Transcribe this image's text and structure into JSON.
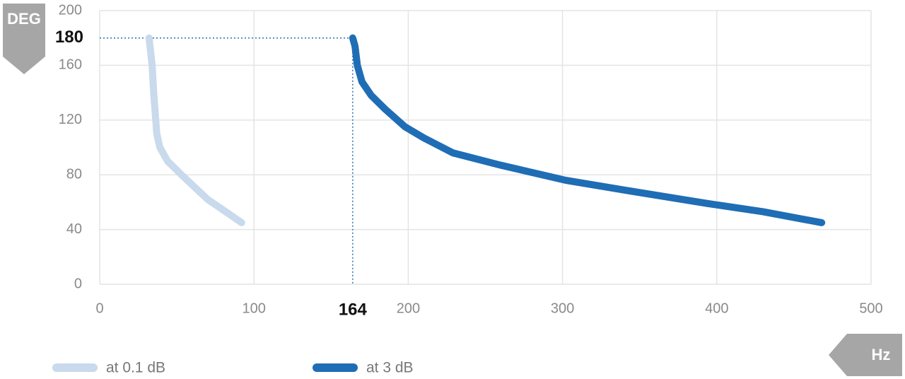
{
  "chart_data": {
    "type": "line",
    "y_unit": "DEG",
    "x_unit": "Hz",
    "xlim": [
      0,
      500
    ],
    "xticks": [
      0,
      100,
      200,
      300,
      400,
      500
    ],
    "ylim": [
      0,
      200
    ],
    "yticks": [
      0,
      40,
      80,
      120,
      160,
      200
    ],
    "grid": true,
    "legend": "bottom-left",
    "series": [
      {
        "name": "at 0.1 dB",
        "color": "#c8daec",
        "x": [
          32,
          34,
          35,
          37,
          39,
          44,
          53,
          70,
          92
        ],
        "values": [
          180,
          160,
          140,
          110,
          100,
          90,
          80,
          62,
          45
        ]
      },
      {
        "name": "at 3 dB",
        "color": "#1f6db5",
        "x": [
          164,
          165.5,
          167,
          170,
          176,
          185,
          198,
          210,
          229,
          260,
          302,
          350,
          394,
          430,
          468
        ],
        "values": [
          180,
          174,
          160,
          148,
          138,
          128,
          115,
          107,
          96,
          87,
          76,
          67,
          59,
          53,
          45
        ]
      }
    ],
    "annotations": {
      "x_marker": 164,
      "y_marker": 180
    }
  }
}
